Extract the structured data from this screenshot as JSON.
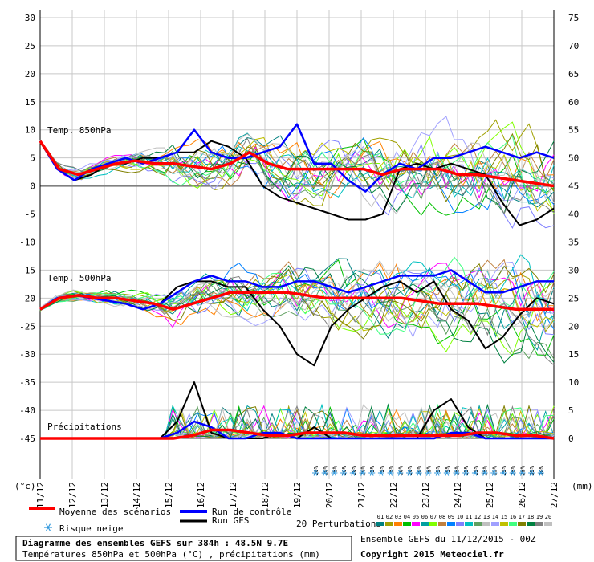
{
  "chart_data": {
    "type": "line",
    "title": "Diagramme des ensembles GEFS sur 384h : 48.5N 9.7E",
    "subtitle": "Températures 850hPa et 500hPa (°C) , précipitations (mm)",
    "run_info": "Ensemble GEFS du 11/12/2015 - 00Z",
    "copyright": "Copyright 2015 Meteociel.fr",
    "left_unit": "(°c)",
    "right_unit": "(mm)",
    "left_ticks": [
      30,
      25,
      20,
      15,
      10,
      5,
      0,
      -5,
      -10,
      -15,
      -20,
      -25,
      -30,
      -35,
      -40,
      -45
    ],
    "right_ticks": [
      75,
      70,
      65,
      60,
      55,
      50,
      45,
      40,
      35,
      30,
      25,
      20,
      15,
      10,
      5,
      0
    ],
    "x_labels": [
      "11/12",
      "12/12",
      "13/12",
      "14/12",
      "15/12",
      "16/12",
      "17/12",
      "18/12",
      "19/12",
      "20/12",
      "21/12",
      "22/12",
      "23/12",
      "24/12",
      "25/12",
      "26/12",
      "27/12"
    ],
    "panel_labels": {
      "t850": "Temp. 850hPa",
      "t500": "Temp. 500hPa",
      "precip": "Précipitations"
    },
    "snow_percentages": [
      "10%",
      "10%",
      "5%",
      "10%",
      "10%",
      "20%",
      "5%",
      "5%",
      "5%",
      "10%",
      "10%",
      "10%",
      "5%",
      "5%",
      "5%",
      "15%",
      "15%",
      "15%",
      "25%",
      "15%",
      "25%",
      "25%",
      "25%",
      "35%",
      "30%"
    ],
    "legend": {
      "mean": "Moyenne des scénarios",
      "control": "Run de contrôle",
      "gfs": "Run GFS",
      "snow": "Risque neige",
      "perturbations": "20 Perturbations"
    },
    "perturbation_labels": [
      "01",
      "02",
      "03",
      "04",
      "05",
      "06",
      "07",
      "08",
      "09",
      "10",
      "11",
      "12",
      "13",
      "14",
      "15",
      "16",
      "17",
      "18",
      "19",
      "20"
    ],
    "perturbation_colors": [
      "#008080",
      "#a0a000",
      "#ff8000",
      "#00c000",
      "#ff00ff",
      "#00a0a0",
      "#80ff00",
      "#c08040",
      "#0080ff",
      "#8080ff",
      "#00c0c0",
      "#60a060",
      "#c0c0c0",
      "#a0a0ff",
      "#c0c000",
      "#40ff80",
      "#808000",
      "#008040",
      "#808080",
      "#c0c0c0"
    ],
    "series": [
      {
        "name": "Moyenne des scénarios",
        "color": "#ff0000",
        "t850": [
          8,
          3,
          2,
          3,
          4,
          4.5,
          4,
          4,
          3.5,
          3,
          4,
          6,
          4,
          3,
          3,
          3,
          3,
          3,
          2,
          3,
          3,
          3,
          2,
          2,
          1.5,
          1,
          0.5,
          0
        ],
        "t500": [
          -22,
          -20,
          -19.5,
          -20,
          -20,
          -20.5,
          -21,
          -22,
          -21,
          -20,
          -19,
          -19,
          -19,
          -19,
          -19.5,
          -20,
          -20,
          -20,
          -20,
          -20,
          -20.5,
          -21,
          -21,
          -21,
          -21.5,
          -22,
          -22,
          -22
        ],
        "precip": [
          0,
          0,
          0,
          0,
          0,
          0,
          0,
          0,
          0.5,
          1.5,
          1.5,
          1,
          0.5,
          0.5,
          1,
          1,
          1,
          0.5,
          0.5,
          0.5,
          0.5,
          0.5,
          0.5,
          1,
          1,
          0.5,
          0.5,
          0
        ]
      },
      {
        "name": "Run de contrôle",
        "color": "#0000ff",
        "t850": [
          8,
          3,
          1,
          3,
          4,
          5,
          4,
          5,
          6,
          10,
          6,
          5,
          5,
          6,
          7,
          11,
          4,
          4,
          1,
          -1,
          2,
          4,
          3,
          5,
          5,
          6,
          7,
          6,
          5,
          6,
          5
        ],
        "t500": [
          -22,
          -20,
          -19.5,
          -20,
          -20.5,
          -21,
          -22,
          -21,
          -19,
          -17,
          -16,
          -17,
          -17,
          -18,
          -18,
          -17,
          -17,
          -18,
          -19,
          -18,
          -17,
          -16,
          -16,
          -16,
          -15,
          -17,
          -19,
          -19,
          -18,
          -17,
          -17
        ],
        "precip": [
          0,
          0,
          0,
          0,
          0,
          0,
          0,
          0,
          1,
          3,
          2,
          0,
          0,
          1,
          1,
          0,
          0,
          0,
          0,
          0,
          0,
          0,
          0,
          0,
          1,
          1,
          0,
          0,
          0,
          0,
          0
        ]
      },
      {
        "name": "Run GFS",
        "color": "#000000",
        "t850": [
          8,
          3,
          1,
          2,
          4,
          4,
          5,
          5,
          6,
          6,
          8,
          7,
          5,
          0,
          -2,
          -3,
          -4,
          -5,
          -6,
          -6,
          -5,
          3,
          4,
          3,
          4,
          3,
          2,
          -3,
          -7,
          -6,
          -4
        ],
        "t500": [
          -22,
          -20,
          -19.5,
          -20,
          -20.5,
          -21,
          -22,
          -21,
          -18,
          -17,
          -17,
          -18,
          -18,
          -22,
          -25,
          -30,
          -32,
          -25,
          -22,
          -20,
          -18,
          -17,
          -19,
          -17,
          -22,
          -24,
          -29,
          -27,
          -23,
          -20,
          -21
        ],
        "precip": [
          0,
          0,
          0,
          0,
          0,
          0,
          0,
          0,
          3,
          10,
          1,
          0,
          0,
          0,
          1,
          0,
          2,
          0,
          0,
          0,
          0,
          0,
          0,
          5,
          7,
          2,
          0,
          0,
          0,
          0,
          0
        ]
      }
    ],
    "ylim": [
      -45,
      30
    ],
    "precip_ylim": [
      0,
      75
    ]
  }
}
